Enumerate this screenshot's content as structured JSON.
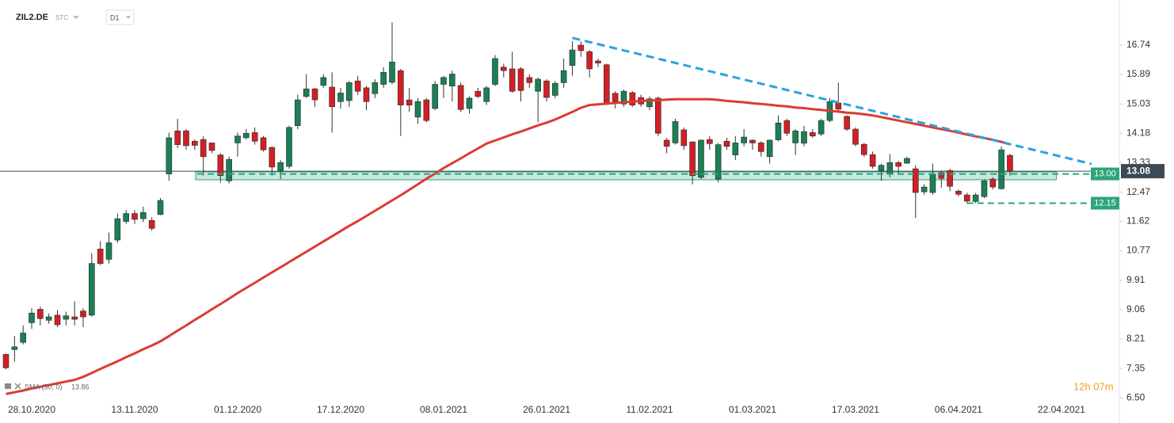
{
  "chart_data": {
    "type": "candlestick",
    "symbol": "ZIL2.DE",
    "instrument_type": "STC",
    "interval": "D1",
    "categories": [
      null,
      null,
      null,
      "28.10.2020",
      null,
      null,
      null,
      null,
      null,
      null,
      null,
      null,
      null,
      null,
      null,
      "13.11.2020",
      null,
      null,
      null,
      null,
      null,
      null,
      null,
      null,
      null,
      null,
      null,
      "01.12.2020",
      null,
      null,
      null,
      null,
      null,
      null,
      null,
      null,
      null,
      null,
      null,
      "17.12.2020",
      null,
      null,
      null,
      null,
      null,
      null,
      null,
      null,
      null,
      null,
      null,
      "08.01.2021",
      null,
      null,
      null,
      null,
      null,
      null,
      null,
      null,
      null,
      null,
      null,
      "26.01.2021",
      null,
      null,
      null,
      null,
      null,
      null,
      null,
      null,
      null,
      null,
      null,
      "11.02.2021",
      null,
      null,
      null,
      null,
      null,
      null,
      null,
      null,
      null,
      null,
      null,
      "01.03.2021",
      null,
      null,
      null,
      null,
      null,
      null,
      null,
      null,
      null,
      null,
      null,
      "17.03.2021",
      null,
      null,
      null,
      null,
      null,
      null,
      null,
      null,
      null,
      null,
      null,
      "06.04.2021",
      null,
      null,
      null,
      null,
      null,
      null,
      null,
      null,
      null,
      null,
      null,
      "22.04.2021"
    ],
    "open": [
      7.76,
      7.9,
      8.11,
      8.68,
      9.07,
      8.75,
      8.9,
      8.78,
      8.85,
      9.02,
      8.9,
      10.82,
      10.52,
      11.08,
      11.62,
      11.85,
      11.7,
      11.65,
      11.82,
      13.0,
      14.25,
      14.25,
      13.95,
      14.0,
      13.9,
      13.55,
      12.8,
      13.9,
      14.05,
      14.2,
      14.05,
      13.77,
      13.1,
      13.22,
      14.4,
      15.25,
      15.47,
      15.57,
      15.52,
      15.1,
      15.13,
      15.7,
      15.5,
      15.33,
      15.6,
      15.66,
      16.0,
      15.15,
      14.65,
      15.15,
      14.9,
      15.6,
      15.55,
      15.57,
      14.9,
      15.4,
      15.1,
      15.6,
      16.1,
      16.05,
      16.05,
      15.8,
      15.4,
      15.7,
      15.28,
      15.65,
      16.15,
      16.74,
      16.55,
      16.28,
      16.17,
      15.34,
      15.03,
      15.36,
      15.22,
      14.95,
      15.2,
      13.98,
      13.9,
      14.28,
      13.93,
      12.9,
      14.0,
      12.85,
      13.95,
      13.55,
      13.9,
      13.98,
      13.9,
      13.5,
      13.99,
      14.55,
      13.9,
      13.89,
      14.2,
      14.16,
      14.55,
      15.06,
      14.67,
      14.3,
      13.86,
      13.56,
      13.1,
      12.99,
      13.33,
      13.31,
      13.15,
      12.48,
      12.46,
      13.03,
      13.1,
      12.5,
      12.39,
      12.2,
      12.34,
      12.85,
      12.57,
      13.54,
      null,
      null,
      null,
      null,
      null,
      null
    ],
    "high": [
      7.78,
      8.3,
      8.6,
      9.1,
      9.15,
      8.95,
      9.05,
      9.0,
      9.3,
      9.1,
      10.7,
      11.05,
      11.3,
      11.85,
      11.95,
      11.95,
      12.05,
      11.75,
      12.3,
      14.2,
      14.6,
      14.3,
      14.0,
      14.1,
      13.9,
      13.6,
      13.5,
      14.2,
      14.3,
      14.35,
      14.1,
      13.8,
      13.4,
      14.4,
      15.3,
      15.9,
      15.5,
      15.9,
      15.95,
      15.5,
      15.7,
      15.85,
      15.55,
      15.75,
      16.1,
      17.4,
      16.05,
      15.5,
      15.2,
      15.2,
      15.7,
      15.85,
      16.0,
      15.65,
      15.25,
      15.5,
      15.55,
      16.45,
      16.2,
      16.55,
      16.1,
      15.9,
      15.8,
      15.75,
      15.7,
      16.35,
      16.85,
      16.85,
      16.6,
      16.35,
      16.2,
      15.4,
      15.45,
      15.4,
      15.3,
      15.25,
      15.25,
      14.05,
      14.6,
      14.35,
      13.95,
      14.0,
      14.1,
      13.9,
      14.05,
      14.1,
      14.3,
      14.0,
      13.95,
      14.0,
      14.7,
      14.6,
      14.3,
      14.4,
      14.3,
      14.6,
      15.2,
      15.65,
      14.7,
      14.35,
      13.9,
      13.65,
      13.3,
      13.58,
      13.38,
      13.5,
      13.25,
      12.7,
      13.3,
      13.1,
      13.15,
      12.55,
      12.45,
      12.45,
      12.85,
      12.9,
      13.8,
      13.58,
      null,
      null,
      null,
      null,
      null,
      null
    ],
    "low": [
      7.33,
      7.55,
      8.05,
      8.5,
      8.6,
      8.65,
      8.55,
      8.6,
      8.6,
      8.55,
      8.85,
      10.35,
      10.4,
      11.0,
      11.55,
      11.55,
      11.6,
      11.35,
      11.8,
      12.8,
      13.75,
      13.7,
      13.7,
      12.95,
      13.6,
      12.75,
      12.72,
      13.5,
      14.0,
      13.85,
      13.65,
      12.95,
      12.85,
      13.15,
      14.3,
      15.2,
      14.95,
      15.5,
      14.2,
      14.9,
      14.95,
      15.3,
      14.85,
      15.2,
      15.5,
      15.6,
      14.1,
      14.8,
      14.45,
      14.5,
      14.85,
      15.2,
      15.1,
      14.8,
      14.75,
      15.2,
      15.0,
      15.55,
      15.8,
      15.35,
      15.1,
      15.5,
      14.5,
      15.1,
      15.2,
      15.5,
      15.85,
      16.4,
      15.8,
      16.1,
      15.0,
      14.9,
      14.95,
      14.95,
      14.95,
      14.85,
      14.1,
      13.6,
      13.85,
      13.7,
      12.7,
      12.85,
      13.7,
      12.75,
      13.7,
      13.4,
      13.8,
      13.7,
      13.5,
      13.3,
      13.95,
      14.1,
      13.55,
      13.8,
      14.05,
      14.1,
      14.5,
      14.8,
      14.25,
      13.8,
      13.5,
      13.15,
      12.8,
      12.9,
      13.0,
      13.3,
      11.72,
      12.4,
      12.4,
      12.6,
      12.5,
      12.35,
      12.15,
      12.15,
      12.3,
      12.55,
      12.55,
      12.95,
      null,
      null,
      null,
      null,
      null,
      null
    ],
    "close": [
      7.37,
      7.98,
      8.38,
      8.96,
      8.8,
      8.85,
      8.62,
      8.88,
      8.78,
      8.85,
      10.4,
      10.4,
      11.0,
      11.7,
      11.85,
      11.68,
      11.88,
      11.42,
      12.23,
      14.05,
      13.85,
      13.82,
      13.83,
      13.5,
      13.68,
      12.95,
      13.42,
      14.1,
      14.18,
      13.95,
      13.7,
      13.2,
      13.33,
      14.35,
      15.15,
      15.47,
      15.15,
      15.8,
      14.95,
      15.35,
      15.65,
      15.4,
      15.1,
      15.65,
      15.95,
      16.25,
      15.0,
      15.0,
      15.1,
      14.55,
      15.6,
      15.8,
      15.9,
      14.87,
      15.2,
      15.25,
      15.5,
      16.35,
      16.0,
      15.4,
      15.42,
      15.65,
      15.75,
      15.22,
      15.63,
      16.0,
      16.6,
      16.58,
      16.05,
      16.22,
      15.06,
      15.1,
      15.4,
      15.0,
      15.03,
      15.18,
      14.18,
      13.8,
      14.52,
      13.82,
      12.95,
      13.98,
      13.88,
      13.85,
      13.8,
      13.9,
      14.07,
      13.9,
      13.65,
      13.98,
      14.48,
      14.18,
      14.25,
      14.23,
      14.1,
      14.55,
      15.1,
      14.88,
      14.3,
      13.86,
      13.56,
      13.22,
      13.25,
      13.33,
      13.22,
      13.45,
      12.46,
      12.62,
      12.99,
      12.87,
      12.64,
      12.41,
      12.21,
      12.39,
      12.8,
      12.62,
      13.7,
      13.08,
      null,
      null,
      null,
      null,
      null,
      null
    ],
    "up_color": "#1b7f55",
    "down_color": "#d21f26",
    "sma": {
      "name": "SMA (50, 0)",
      "last_value": 13.86,
      "color": "#dd3b34",
      "values": [
        6.61,
        6.66,
        6.71,
        6.77,
        6.82,
        6.87,
        6.92,
        6.97,
        7.02,
        7.11,
        7.22,
        7.34,
        7.45,
        7.56,
        7.68,
        7.79,
        7.91,
        8.02,
        8.14,
        8.29,
        8.45,
        8.6,
        8.76,
        8.91,
        9.07,
        9.22,
        9.38,
        9.54,
        9.69,
        9.84,
        9.99,
        10.14,
        10.29,
        10.44,
        10.59,
        10.74,
        10.89,
        11.04,
        11.19,
        11.34,
        11.49,
        11.63,
        11.78,
        11.93,
        12.08,
        12.23,
        12.38,
        12.54,
        12.7,
        12.86,
        13.01,
        13.17,
        13.31,
        13.45,
        13.6,
        13.74,
        13.88,
        13.97,
        14.06,
        14.15,
        14.23,
        14.32,
        14.41,
        14.49,
        14.58,
        14.69,
        14.8,
        14.92,
        15.0,
        15.02,
        15.04,
        15.06,
        15.08,
        15.1,
        15.12,
        15.13,
        15.14,
        15.16,
        15.17,
        15.17,
        15.17,
        15.17,
        15.17,
        15.15,
        15.12,
        15.1,
        15.08,
        15.05,
        15.03,
        15.01,
        14.98,
        14.96,
        14.93,
        14.91,
        14.88,
        14.86,
        14.83,
        14.81,
        14.78,
        14.76,
        14.73,
        14.7,
        14.65,
        14.6,
        14.55,
        14.5,
        14.45,
        14.4,
        14.35,
        14.3,
        14.25,
        14.2,
        14.14,
        14.09,
        14.04,
        13.99,
        13.93,
        13.86,
        null,
        null,
        null,
        null,
        null,
        null
      ]
    },
    "ylim": [
      6.32,
      18.05
    ],
    "yticks": [
      {
        "value": 6.5,
        "label": "6.50"
      },
      7.35,
      8.21,
      9.06,
      9.91,
      10.77,
      11.62,
      12.47,
      13.33,
      14.18,
      15.03,
      15.89,
      16.74
    ],
    "last_price": 13.08,
    "trendline": {
      "from": [
        66,
        16.95
      ],
      "to": [
        126.5,
        13.29
      ],
      "color": "#29a3e0"
    },
    "zone": {
      "from": 22.1,
      "to": 122.4,
      "low": 12.83,
      "high": 13.06,
      "color": "#2ca57a"
    },
    "levels": [
      {
        "value": 13,
        "label": "13.00",
        "from": 22.3,
        "color": "#2ca57a"
      },
      {
        "value": 12.15,
        "label": "12.15",
        "from": 112,
        "color": "#2ca57a"
      }
    ],
    "timer": "12h 07m"
  }
}
